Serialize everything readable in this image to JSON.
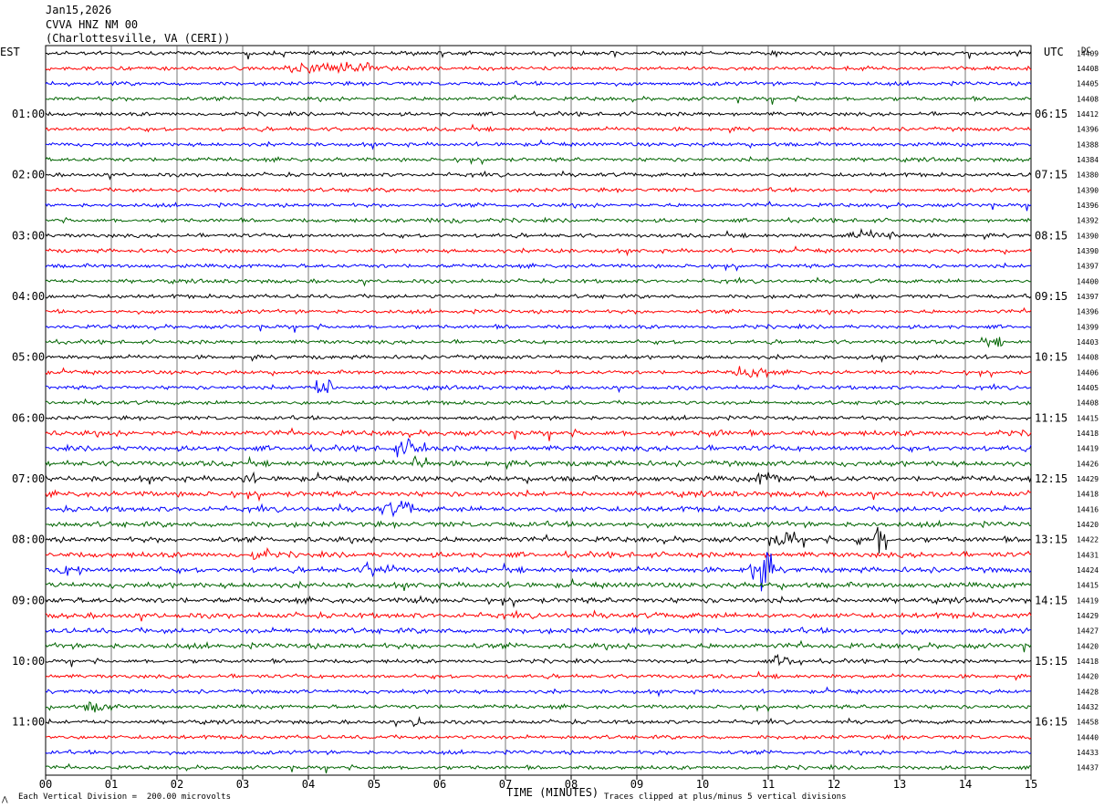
{
  "header": {
    "date": "Jan15,2026",
    "station": "CVVA HNZ NM 00",
    "location": "(Charlottesville, VA (CERI))"
  },
  "tz_left": "EST",
  "tz_right": "UTC",
  "dc_label": "DC",
  "colors": {
    "trace_cycle": [
      "#000000",
      "#ff0000",
      "#0000ff",
      "#006400"
    ],
    "grid": "#000000"
  },
  "chart_data": {
    "type": "line",
    "title": "CVVA HNZ NM 00",
    "xlabel": "TIME (MINUTES)",
    "x_ticks": [
      "00",
      "01",
      "02",
      "03",
      "04",
      "05",
      "06",
      "07",
      "08",
      "09",
      "10",
      "11",
      "12",
      "13",
      "14",
      "15"
    ],
    "xlim": [
      0,
      15
    ],
    "left_hour_labels": [
      "01:00",
      "02:00",
      "03:00",
      "04:00",
      "05:00",
      "06:00",
      "07:00",
      "08:00",
      "09:00",
      "10:00",
      "11:00"
    ],
    "right_hour_labels": [
      "06:15",
      "07:15",
      "08:15",
      "09:15",
      "10:15",
      "11:15",
      "12:15",
      "13:15",
      "14:15",
      "15:15",
      "16:15"
    ],
    "dc_offsets": [
      14409,
      14408,
      14405,
      14408,
      14412,
      14396,
      14388,
      14384,
      14380,
      14390,
      14396,
      14392,
      14390,
      14390,
      14397,
      14400,
      14397,
      14396,
      14399,
      14403,
      14408,
      14406,
      14405,
      14408,
      14415,
      14418,
      14419,
      14426,
      14429,
      14418,
      14416,
      14420,
      14422,
      14431,
      14424,
      14415,
      14419,
      14429,
      14427,
      14420,
      14418,
      14420,
      14428,
      14432,
      14458,
      14440,
      14433,
      14437
    ],
    "scale_note": "Each Vertical Division =  200.00 microvolts",
    "clip_note": "Traces clipped at plus/minus 5 vertical divisions"
  }
}
